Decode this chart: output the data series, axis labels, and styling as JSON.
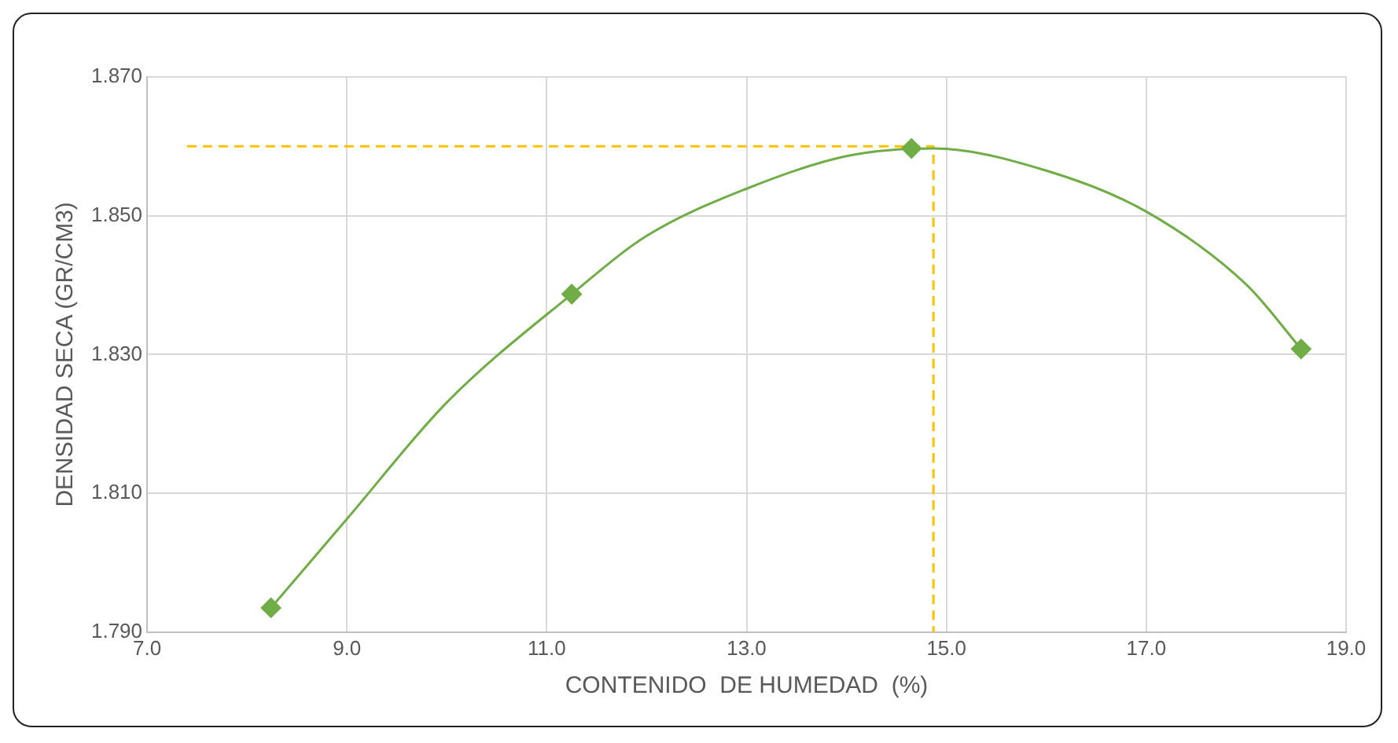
{
  "chart_data": {
    "type": "scatter",
    "xlabel": "CONTENIDO  DE HUMEDAD  (%)",
    "ylabel": "DENSIDAD SECA (GR/CM3)",
    "xlim": [
      7,
      19
    ],
    "xticks": [
      {
        "value": 7,
        "label": "7.0"
      },
      {
        "value": 9,
        "label": "9.0"
      },
      {
        "value": 11,
        "label": "11.0"
      },
      {
        "value": 13,
        "label": "13.0"
      },
      {
        "value": 15,
        "label": "15.0"
      },
      {
        "value": 17,
        "label": "17.0"
      },
      {
        "value": 19,
        "label": "19.0"
      }
    ],
    "ylim": [
      1.79,
      1.87
    ],
    "yticks": [
      {
        "value": 1.79,
        "label": "1.790"
      },
      {
        "value": 1.81,
        "label": "1.810"
      },
      {
        "value": 1.83,
        "label": "1.830"
      },
      {
        "value": 1.85,
        "label": "1.850"
      },
      {
        "value": 1.87,
        "label": "1.870"
      }
    ],
    "grid": true,
    "legend": false,
    "series": [
      {
        "type": "line",
        "color": "#70ad47",
        "marker": "none",
        "line_style": "solid",
        "x": [
          8.24,
          9,
          10,
          11.25,
          12,
          13,
          14,
          14.87,
          16,
          17,
          18,
          18.55
        ],
        "values": [
          1.7935,
          1.8063,
          1.8231,
          1.8387,
          1.8471,
          1.8539,
          1.8586,
          1.8597,
          1.8565,
          1.8506,
          1.8401,
          1.8308
        ]
      },
      {
        "type": "scatter",
        "color": "#70ad47",
        "marker": "diamond",
        "x": [
          8.24,
          11.25,
          14.65,
          18.55
        ],
        "values": [
          1.7935,
          1.8387,
          1.8597,
          1.8308
        ]
      },
      {
        "type": "line",
        "color": "#ffc000",
        "marker": "none",
        "line_style": "dashed",
        "x": [
          7.4,
          14.87,
          14.87
        ],
        "values": [
          1.86,
          1.86,
          1.79
        ]
      }
    ]
  }
}
